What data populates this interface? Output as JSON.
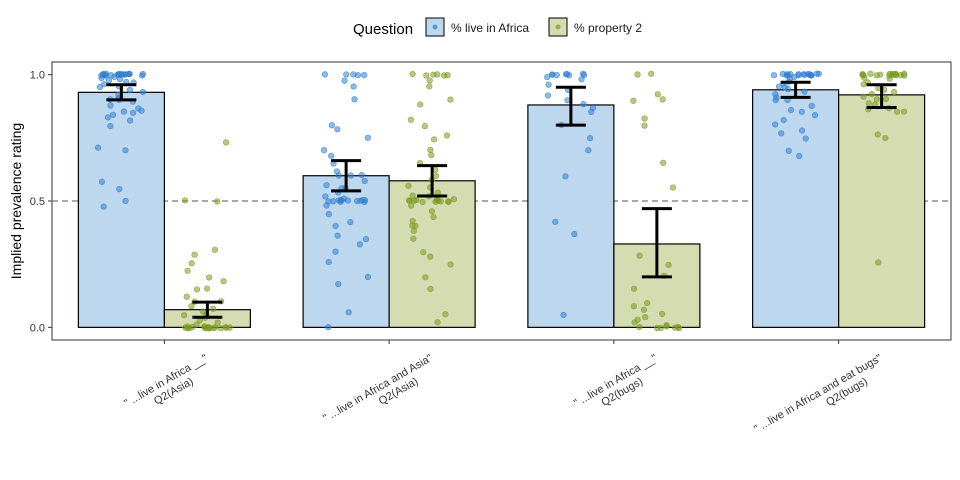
{
  "chart_data": {
    "type": "bar",
    "title": "",
    "xlabel": "",
    "ylabel": "Implied prevalence rating",
    "ylim": [
      -0.05,
      1.05
    ],
    "y_ticks": [
      0.0,
      0.5,
      1.0
    ],
    "y_tick_labels": [
      "0.0",
      "0.5",
      "1.0"
    ],
    "reference_line": 0.5,
    "legend": {
      "title": "Question",
      "placement": "top"
    },
    "categories": [
      [
        "\" ...live in Africa __\"",
        "Q2(Asia)"
      ],
      [
        "\" ...live in Africa and Asia\"",
        "Q2(Asia)"
      ],
      [
        "\" ...live in Africa __\"",
        "Q2(bugs)"
      ],
      [
        "\" ...live in Africa and eat bugs\"",
        "Q2(bugs)"
      ]
    ],
    "series": [
      {
        "name": "% live in Africa",
        "fill": "#bdd7ee",
        "point_color": "#2f80d1",
        "values": [
          0.93,
          0.6,
          0.88,
          0.94
        ],
        "ci_low": [
          0.9,
          0.54,
          0.8,
          0.91
        ],
        "ci_high": [
          0.96,
          0.66,
          0.95,
          0.97
        ],
        "points": [
          [
            1.0,
            1.0,
            1.0,
            1.0,
            1.0,
            1.0,
            1.0,
            1.0,
            1.0,
            1.0,
            1.0,
            1.0,
            1.0,
            1.0,
            1.0,
            1.0,
            1.0,
            1.0,
            1.0,
            1.0,
            0.99,
            0.99,
            0.98,
            0.98,
            0.97,
            0.97,
            0.96,
            0.95,
            0.95,
            0.94,
            0.93,
            0.92,
            0.91,
            0.9,
            0.9,
            0.89,
            0.88,
            0.87,
            0.86,
            0.85,
            0.85,
            0.84,
            0.83,
            0.82,
            0.8,
            0.71,
            0.7,
            0.58,
            0.55,
            0.5,
            0.48
          ],
          [
            1.0,
            1.0,
            1.0,
            1.0,
            1.0,
            0.98,
            0.95,
            0.9,
            0.8,
            0.78,
            0.75,
            0.7,
            0.68,
            0.65,
            0.62,
            0.6,
            0.6,
            0.6,
            0.58,
            0.56,
            0.55,
            0.55,
            0.53,
            0.52,
            0.51,
            0.5,
            0.5,
            0.5,
            0.5,
            0.5,
            0.5,
            0.5,
            0.5,
            0.5,
            0.5,
            0.5,
            0.5,
            0.48,
            0.45,
            0.42,
            0.4,
            0.36,
            0.35,
            0.33,
            0.3,
            0.26,
            0.2,
            0.17,
            0.06,
            0.0
          ],
          [
            1.0,
            1.0,
            1.0,
            1.0,
            1.0,
            1.0,
            1.0,
            1.0,
            0.99,
            0.98,
            0.96,
            0.94,
            0.92,
            0.9,
            0.88,
            0.87,
            0.85,
            0.8,
            0.75,
            0.7,
            0.6,
            0.42,
            0.37,
            0.05
          ],
          [
            1.0,
            1.0,
            1.0,
            1.0,
            1.0,
            1.0,
            1.0,
            1.0,
            1.0,
            1.0,
            1.0,
            1.0,
            1.0,
            1.0,
            1.0,
            1.0,
            1.0,
            0.99,
            0.98,
            0.97,
            0.96,
            0.95,
            0.95,
            0.94,
            0.93,
            0.92,
            0.91,
            0.9,
            0.9,
            0.88,
            0.86,
            0.85,
            0.84,
            0.82,
            0.8,
            0.78,
            0.77,
            0.75,
            0.7,
            0.68
          ]
        ]
      },
      {
        "name": "% property 2",
        "fill": "#d5dcb2",
        "point_color": "#7a9a1e",
        "values": [
          0.07,
          0.58,
          0.33,
          0.92
        ],
        "ci_low": [
          0.04,
          0.52,
          0.2,
          0.87
        ],
        "ci_high": [
          0.1,
          0.64,
          0.47,
          0.96
        ],
        "points": [
          [
            0.73,
            0.5,
            0.5,
            0.31,
            0.29,
            0.25,
            0.22,
            0.2,
            0.18,
            0.15,
            0.15,
            0.12,
            0.1,
            0.1,
            0.08,
            0.07,
            0.06,
            0.05,
            0.05,
            0.04,
            0.03,
            0.02,
            0.01,
            0.0,
            0.0,
            0.0,
            0.0,
            0.0,
            0.0,
            0.0,
            0.0,
            0.0,
            0.0,
            0.0,
            0.0,
            0.0,
            0.0,
            0.0,
            0.0,
            0.0,
            0.0
          ],
          [
            1.0,
            1.0,
            1.0,
            1.0,
            1.0,
            1.0,
            0.98,
            0.95,
            0.9,
            0.88,
            0.82,
            0.8,
            0.76,
            0.74,
            0.7,
            0.68,
            0.65,
            0.62,
            0.6,
            0.58,
            0.56,
            0.55,
            0.53,
            0.52,
            0.52,
            0.51,
            0.5,
            0.5,
            0.5,
            0.5,
            0.5,
            0.5,
            0.5,
            0.5,
            0.5,
            0.5,
            0.5,
            0.5,
            0.48,
            0.46,
            0.44,
            0.42,
            0.4,
            0.4,
            0.38,
            0.35,
            0.3,
            0.28,
            0.25,
            0.2,
            0.15,
            0.05,
            0.02
          ],
          [
            1.0,
            1.0,
            0.92,
            0.9,
            0.9,
            0.83,
            0.8,
            0.65,
            0.55,
            0.28,
            0.25,
            0.2,
            0.15,
            0.1,
            0.08,
            0.07,
            0.05,
            0.04,
            0.03,
            0.02,
            0.01,
            0.0,
            0.0,
            0.0,
            0.0,
            0.0,
            0.0,
            0.0
          ],
          [
            1.0,
            1.0,
            1.0,
            1.0,
            1.0,
            1.0,
            1.0,
            1.0,
            1.0,
            1.0,
            1.0,
            1.0,
            1.0,
            1.0,
            1.0,
            1.0,
            0.99,
            0.98,
            0.97,
            0.96,
            0.95,
            0.94,
            0.93,
            0.92,
            0.91,
            0.9,
            0.9,
            0.89,
            0.88,
            0.87,
            0.86,
            0.85,
            0.85,
            0.76,
            0.75,
            0.26
          ]
        ]
      }
    ]
  }
}
